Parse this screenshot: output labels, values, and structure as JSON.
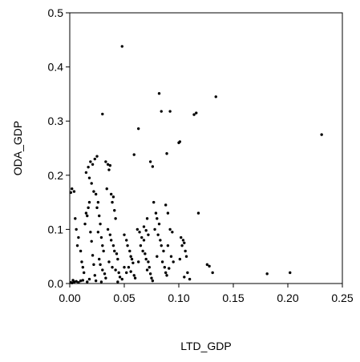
{
  "chart_data": {
    "type": "scatter",
    "xlabel": "LTD_GDP",
    "ylabel": "ODA_GDP",
    "xlim": [
      0,
      0.25
    ],
    "ylim": [
      0,
      0.5
    ],
    "x_ticks": [
      "0.00",
      "0.05",
      "0.10",
      "0.15",
      "0.20",
      "0.25"
    ],
    "y_ticks": [
      "0.0",
      "0.1",
      "0.2",
      "0.3",
      "0.4",
      "0.5"
    ],
    "grid": false,
    "legend": "none",
    "marker_color": "#000000",
    "points": [
      [
        0.001,
        0.002
      ],
      [
        0.002,
        0.001
      ],
      [
        0.004,
        0.003
      ],
      [
        0.006,
        0.004
      ],
      [
        0.008,
        0.002
      ],
      [
        0.012,
        0.006
      ],
      [
        0.016,
        0.003
      ],
      [
        0.018,
        0.008
      ],
      [
        0.01,
        0.005
      ],
      [
        0.003,
        0.006
      ],
      [
        0.001,
        0.168
      ],
      [
        0.002,
        0.175
      ],
      [
        0.004,
        0.17
      ],
      [
        0.005,
        0.12
      ],
      [
        0.006,
        0.1
      ],
      [
        0.008,
        0.085
      ],
      [
        0.01,
        0.06
      ],
      [
        0.011,
        0.04
      ],
      [
        0.012,
        0.03
      ],
      [
        0.013,
        0.02
      ],
      [
        0.007,
        0.07
      ],
      [
        0.014,
        0.11
      ],
      [
        0.015,
        0.13
      ],
      [
        0.016,
        0.125
      ],
      [
        0.017,
        0.14
      ],
      [
        0.018,
        0.15
      ],
      [
        0.019,
        0.095
      ],
      [
        0.02,
        0.078
      ],
      [
        0.021,
        0.052
      ],
      [
        0.022,
        0.035
      ],
      [
        0.023,
        0.015
      ],
      [
        0.024,
        0.005
      ],
      [
        0.015,
        0.205
      ],
      [
        0.017,
        0.215
      ],
      [
        0.019,
        0.225
      ],
      [
        0.021,
        0.22
      ],
      [
        0.023,
        0.23
      ],
      [
        0.025,
        0.235
      ],
      [
        0.018,
        0.195
      ],
      [
        0.02,
        0.185
      ],
      [
        0.022,
        0.17
      ],
      [
        0.024,
        0.165
      ],
      [
        0.026,
        0.15
      ],
      [
        0.025,
        0.14
      ],
      [
        0.027,
        0.125
      ],
      [
        0.028,
        0.11
      ],
      [
        0.026,
        0.095
      ],
      [
        0.029,
        0.085
      ],
      [
        0.03,
        0.07
      ],
      [
        0.031,
        0.06
      ],
      [
        0.027,
        0.045
      ],
      [
        0.028,
        0.035
      ],
      [
        0.03,
        0.025
      ],
      [
        0.032,
        0.018
      ],
      [
        0.033,
        0.01
      ],
      [
        0.029,
        0.003
      ],
      [
        0.033,
        0.225
      ],
      [
        0.035,
        0.22
      ],
      [
        0.037,
        0.218
      ],
      [
        0.036,
        0.21
      ],
      [
        0.034,
        0.175
      ],
      [
        0.038,
        0.165
      ],
      [
        0.04,
        0.16
      ],
      [
        0.039,
        0.15
      ],
      [
        0.041,
        0.135
      ],
      [
        0.042,
        0.12
      ],
      [
        0.035,
        0.1
      ],
      [
        0.037,
        0.09
      ],
      [
        0.038,
        0.08
      ],
      [
        0.04,
        0.07
      ],
      [
        0.041,
        0.06
      ],
      [
        0.043,
        0.055
      ],
      [
        0.044,
        0.045
      ],
      [
        0.036,
        0.04
      ],
      [
        0.039,
        0.03
      ],
      [
        0.042,
        0.025
      ],
      [
        0.045,
        0.02
      ],
      [
        0.046,
        0.012
      ],
      [
        0.048,
        0.008
      ],
      [
        0.044,
        0.003
      ],
      [
        0.03,
        0.313
      ],
      [
        0.048,
        0.438
      ],
      [
        0.05,
        0.09
      ],
      [
        0.052,
        0.08
      ],
      [
        0.053,
        0.07
      ],
      [
        0.055,
        0.06
      ],
      [
        0.056,
        0.05
      ],
      [
        0.057,
        0.045
      ],
      [
        0.058,
        0.038
      ],
      [
        0.054,
        0.03
      ],
      [
        0.056,
        0.022
      ],
      [
        0.059,
        0.015
      ],
      [
        0.06,
        0.01
      ],
      [
        0.05,
        0.03
      ],
      [
        0.052,
        0.02
      ],
      [
        0.059,
        0.238
      ],
      [
        0.063,
        0.286
      ],
      [
        0.062,
        0.1
      ],
      [
        0.064,
        0.095
      ],
      [
        0.066,
        0.085
      ],
      [
        0.068,
        0.08
      ],
      [
        0.065,
        0.07
      ],
      [
        0.067,
        0.06
      ],
      [
        0.069,
        0.055
      ],
      [
        0.07,
        0.045
      ],
      [
        0.072,
        0.04
      ],
      [
        0.073,
        0.03
      ],
      [
        0.071,
        0.025
      ],
      [
        0.074,
        0.018
      ],
      [
        0.075,
        0.01
      ],
      [
        0.076,
        0.005
      ],
      [
        0.063,
        0.04
      ],
      [
        0.068,
        0.105
      ],
      [
        0.07,
        0.098
      ],
      [
        0.072,
        0.09
      ],
      [
        0.071,
        0.12
      ],
      [
        0.074,
        0.225
      ],
      [
        0.076,
        0.216
      ],
      [
        0.077,
        0.15
      ],
      [
        0.079,
        0.13
      ],
      [
        0.08,
        0.12
      ],
      [
        0.082,
        0.11
      ],
      [
        0.078,
        0.1
      ],
      [
        0.081,
        0.09
      ],
      [
        0.083,
        0.08
      ],
      [
        0.084,
        0.07
      ],
      [
        0.086,
        0.06
      ],
      [
        0.08,
        0.05
      ],
      [
        0.085,
        0.04
      ],
      [
        0.087,
        0.03
      ],
      [
        0.088,
        0.02
      ],
      [
        0.089,
        0.015
      ],
      [
        0.082,
        0.351
      ],
      [
        0.084,
        0.318
      ],
      [
        0.089,
        0.24
      ],
      [
        0.092,
        0.318
      ],
      [
        0.088,
        0.145
      ],
      [
        0.09,
        0.13
      ],
      [
        0.092,
        0.1
      ],
      [
        0.094,
        0.095
      ],
      [
        0.09,
        0.07
      ],
      [
        0.093,
        0.05
      ],
      [
        0.095,
        0.04
      ],
      [
        0.091,
        0.028
      ],
      [
        0.1,
        0.26
      ],
      [
        0.101,
        0.262
      ],
      [
        0.102,
        0.085
      ],
      [
        0.104,
        0.08
      ],
      [
        0.105,
        0.075
      ],
      [
        0.103,
        0.07
      ],
      [
        0.106,
        0.06
      ],
      [
        0.107,
        0.05
      ],
      [
        0.101,
        0.045
      ],
      [
        0.108,
        0.02
      ],
      [
        0.105,
        0.012
      ],
      [
        0.11,
        0.008
      ],
      [
        0.114,
        0.312
      ],
      [
        0.116,
        0.315
      ],
      [
        0.118,
        0.13
      ],
      [
        0.126,
        0.035
      ],
      [
        0.128,
        0.032
      ],
      [
        0.131,
        0.02
      ],
      [
        0.134,
        0.345
      ],
      [
        0.181,
        0.018
      ],
      [
        0.202,
        0.02
      ],
      [
        0.231,
        0.275
      ]
    ]
  }
}
